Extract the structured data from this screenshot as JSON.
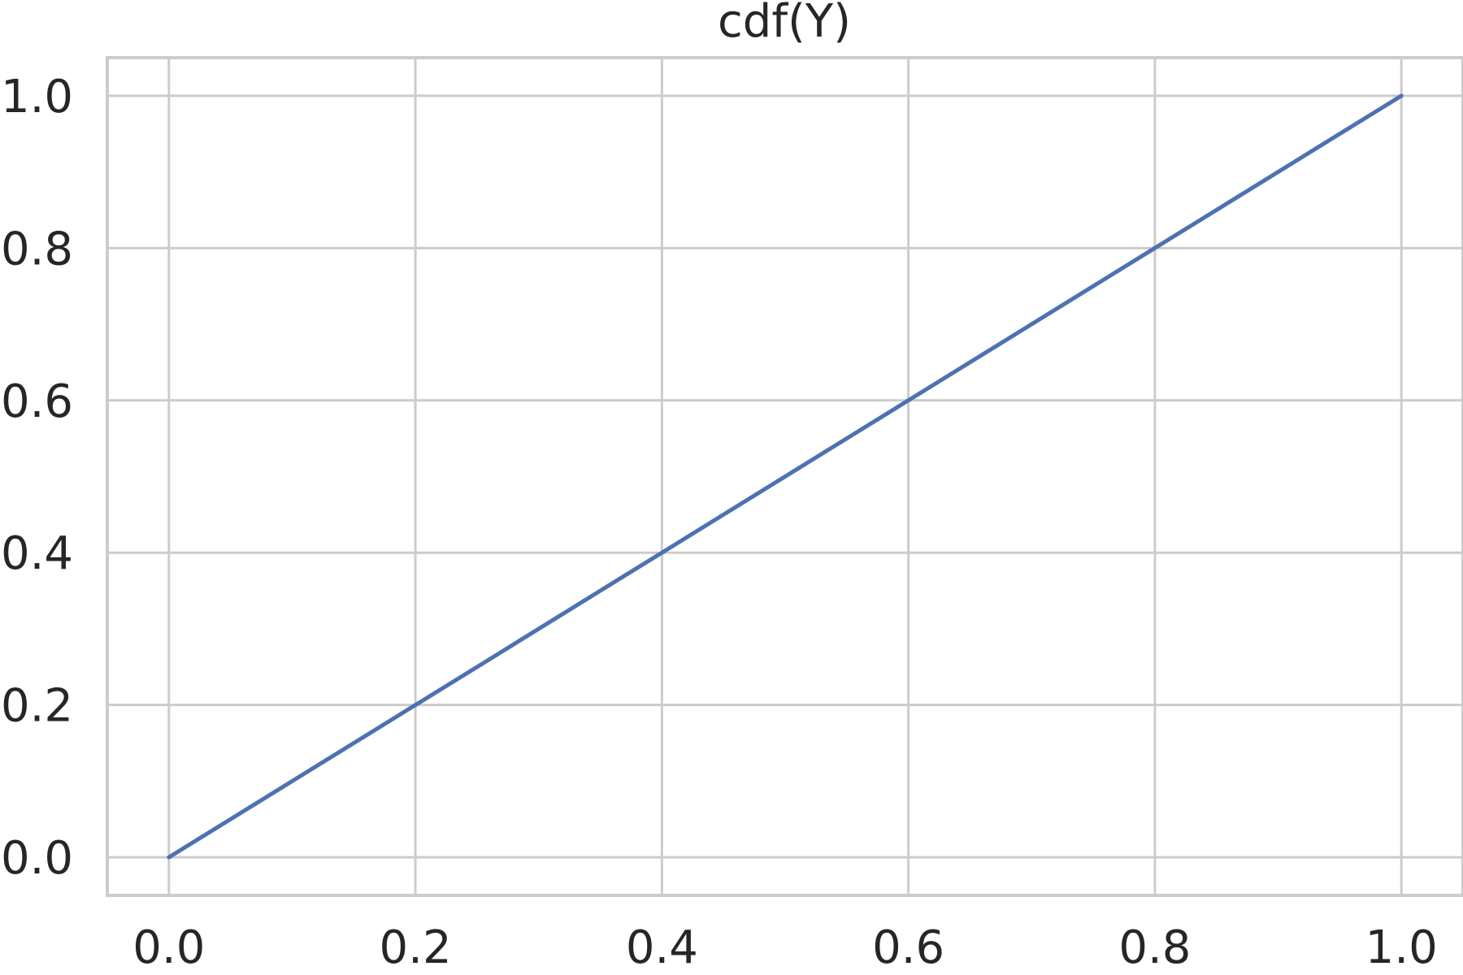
{
  "chart_data": {
    "type": "line",
    "title": "cdf(Y)",
    "xlabel": "",
    "ylabel": "",
    "xlim": [
      -0.05,
      1.05
    ],
    "ylim": [
      -0.05,
      1.05
    ],
    "grid": true,
    "x_ticks": [
      0.0,
      0.2,
      0.4,
      0.6,
      0.8,
      1.0
    ],
    "y_ticks": [
      0.0,
      0.2,
      0.4,
      0.6,
      0.8,
      1.0
    ],
    "x_tick_labels": [
      "0.0",
      "0.2",
      "0.4",
      "0.6",
      "0.8",
      "1.0"
    ],
    "y_tick_labels": [
      "0.0",
      "0.2",
      "0.4",
      "0.6",
      "0.8",
      "1.0"
    ],
    "series": [
      {
        "color": "#4c72b0",
        "x": [
          0.0,
          0.1,
          0.2,
          0.3,
          0.4,
          0.5,
          0.6,
          0.7,
          0.8,
          0.9,
          1.0
        ],
        "y": [
          0.0,
          0.1,
          0.2,
          0.3,
          0.4,
          0.5,
          0.6,
          0.7,
          0.8,
          0.9,
          1.0
        ]
      }
    ]
  }
}
